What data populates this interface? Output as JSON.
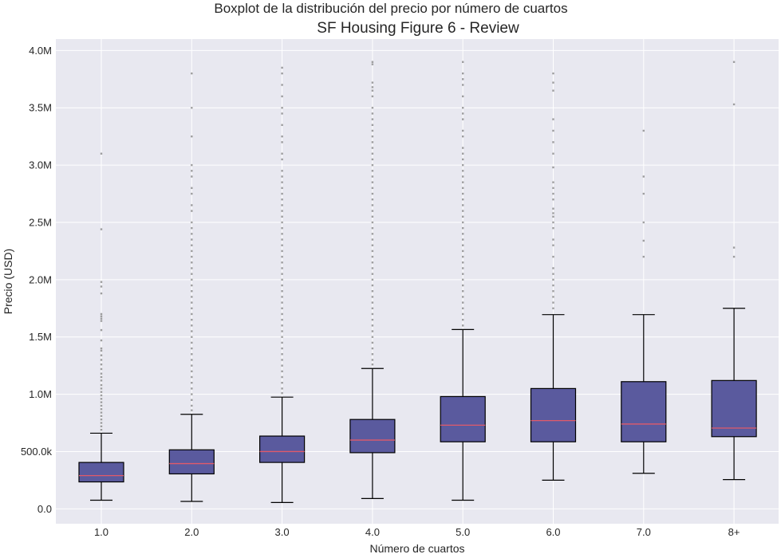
{
  "suptitle": "Boxplot de la distribución del precio por número de cuartos",
  "chart_data": {
    "type": "box",
    "title": "SF Housing Figure 6 - Review",
    "xlabel": "Número de cuartos",
    "ylabel": "Precio (USD)",
    "ylim": [
      -130000,
      4100000
    ],
    "yticks": [
      {
        "value": 0,
        "label": "0.0"
      },
      {
        "value": 500000,
        "label": "500.0k"
      },
      {
        "value": 1000000,
        "label": "1.0M"
      },
      {
        "value": 1500000,
        "label": "1.5M"
      },
      {
        "value": 2000000,
        "label": "2.0M"
      },
      {
        "value": 2500000,
        "label": "2.5M"
      },
      {
        "value": 3000000,
        "label": "3.0M"
      },
      {
        "value": 3500000,
        "label": "3.5M"
      },
      {
        "value": 4000000,
        "label": "4.0M"
      }
    ],
    "grid": true,
    "colors": {
      "background": "#e8e8f0",
      "box_fill": "#5a5a9e",
      "median": "#e05a6a",
      "outlier": "#555555",
      "grid": "#ffffff"
    },
    "boxes": [
      {
        "label": "1.0",
        "whisker_low": 75000,
        "q1": 235000,
        "median": 290000,
        "q3": 405000,
        "whisker_high": 660000,
        "outliers": [
          3100000,
          2440000,
          1980000,
          1940000,
          1880000,
          1700000,
          1680000,
          1660000,
          1640000,
          1560000,
          1470000,
          1400000,
          1380000,
          1340000,
          1300000,
          1260000,
          1220000,
          1180000,
          1150000,
          1120000,
          1080000,
          1050000,
          1020000,
          990000,
          960000,
          930000,
          900000,
          870000,
          840000,
          810000,
          780000,
          750000,
          720000,
          690000
        ]
      },
      {
        "label": "2.0",
        "whisker_low": 65000,
        "q1": 305000,
        "median": 395000,
        "q3": 515000,
        "whisker_high": 825000,
        "outliers": [
          3800000,
          3500000,
          3250000,
          3000000,
          2950000,
          2900000,
          2800000,
          2750000,
          2650000,
          2600000,
          2500000,
          2450000,
          2400000,
          2350000,
          2300000,
          2250000,
          2200000,
          2150000,
          2100000,
          2050000,
          2000000,
          1950000,
          1900000,
          1850000,
          1800000,
          1750000,
          1700000,
          1650000,
          1600000,
          1550000,
          1500000,
          1450000,
          1400000,
          1350000,
          1300000,
          1250000,
          1200000,
          1150000,
          1100000,
          1050000,
          1000000,
          950000,
          900000,
          860000
        ]
      },
      {
        "label": "3.0",
        "whisker_low": 55000,
        "q1": 405000,
        "median": 500000,
        "q3": 635000,
        "whisker_high": 975000,
        "outliers": [
          3850000,
          3800000,
          3700000,
          3600000,
          3500000,
          3450000,
          3350000,
          3250000,
          3200000,
          3100000,
          3050000,
          2950000,
          2900000,
          2850000,
          2800000,
          2750000,
          2700000,
          2650000,
          2600000,
          2550000,
          2500000,
          2450000,
          2400000,
          2350000,
          2300000,
          2250000,
          2200000,
          2150000,
          2100000,
          2050000,
          2000000,
          1950000,
          1900000,
          1850000,
          1800000,
          1750000,
          1700000,
          1650000,
          1600000,
          1550000,
          1500000,
          1450000,
          1400000,
          1350000,
          1300000,
          1250000,
          1200000,
          1150000,
          1100000,
          1050000,
          1010000
        ]
      },
      {
        "label": "4.0",
        "whisker_low": 90000,
        "q1": 490000,
        "median": 600000,
        "q3": 780000,
        "whisker_high": 1225000,
        "outliers": [
          3900000,
          3880000,
          3720000,
          3680000,
          3650000,
          3600000,
          3500000,
          3450000,
          3400000,
          3350000,
          3300000,
          3250000,
          3200000,
          3150000,
          3100000,
          3050000,
          3000000,
          2950000,
          2900000,
          2850000,
          2800000,
          2750000,
          2700000,
          2650000,
          2600000,
          2550000,
          2500000,
          2450000,
          2400000,
          2350000,
          2300000,
          2250000,
          2200000,
          2150000,
          2100000,
          2050000,
          2000000,
          1950000,
          1900000,
          1850000,
          1800000,
          1750000,
          1700000,
          1650000,
          1600000,
          1550000,
          1500000,
          1450000,
          1400000,
          1350000,
          1300000,
          1260000
        ]
      },
      {
        "label": "5.0",
        "whisker_low": 75000,
        "q1": 585000,
        "median": 730000,
        "q3": 980000,
        "whisker_high": 1565000,
        "outliers": [
          3900000,
          3800000,
          3750000,
          3700000,
          3600000,
          3500000,
          3450000,
          3400000,
          3300000,
          3250000,
          3150000,
          3100000,
          3050000,
          3000000,
          2950000,
          2900000,
          2850000,
          2800000,
          2750000,
          2700000,
          2650000,
          2600000,
          2550000,
          2500000,
          2450000,
          2400000,
          2350000,
          2300000,
          2250000,
          2200000,
          2150000,
          2100000,
          2050000,
          2000000,
          1950000,
          1900000,
          1850000,
          1800000,
          1750000,
          1700000,
          1650000,
          1600000
        ]
      },
      {
        "label": "6.0",
        "whisker_low": 250000,
        "q1": 585000,
        "median": 770000,
        "q3": 1050000,
        "whisker_high": 1695000,
        "outliers": [
          3800000,
          3720000,
          3650000,
          3400000,
          3300000,
          3200000,
          3100000,
          2980000,
          2850000,
          2800000,
          2750000,
          2700000,
          2620000,
          2580000,
          2550000,
          2500000,
          2450000,
          2350000,
          2300000,
          2200000,
          2100000,
          2050000,
          2000000,
          1950000,
          1900000,
          1850000,
          1800000,
          1750000
        ]
      },
      {
        "label": "7.0",
        "whisker_low": 310000,
        "q1": 585000,
        "median": 740000,
        "q3": 1110000,
        "whisker_high": 1695000,
        "outliers": [
          3300000,
          2900000,
          2750000,
          2500000,
          2340000,
          2200000
        ]
      },
      {
        "label": "8+",
        "whisker_low": 255000,
        "q1": 630000,
        "median": 705000,
        "q3": 1120000,
        "whisker_high": 1750000,
        "outliers": [
          3900000,
          3530000,
          2280000,
          2200000
        ]
      }
    ]
  }
}
